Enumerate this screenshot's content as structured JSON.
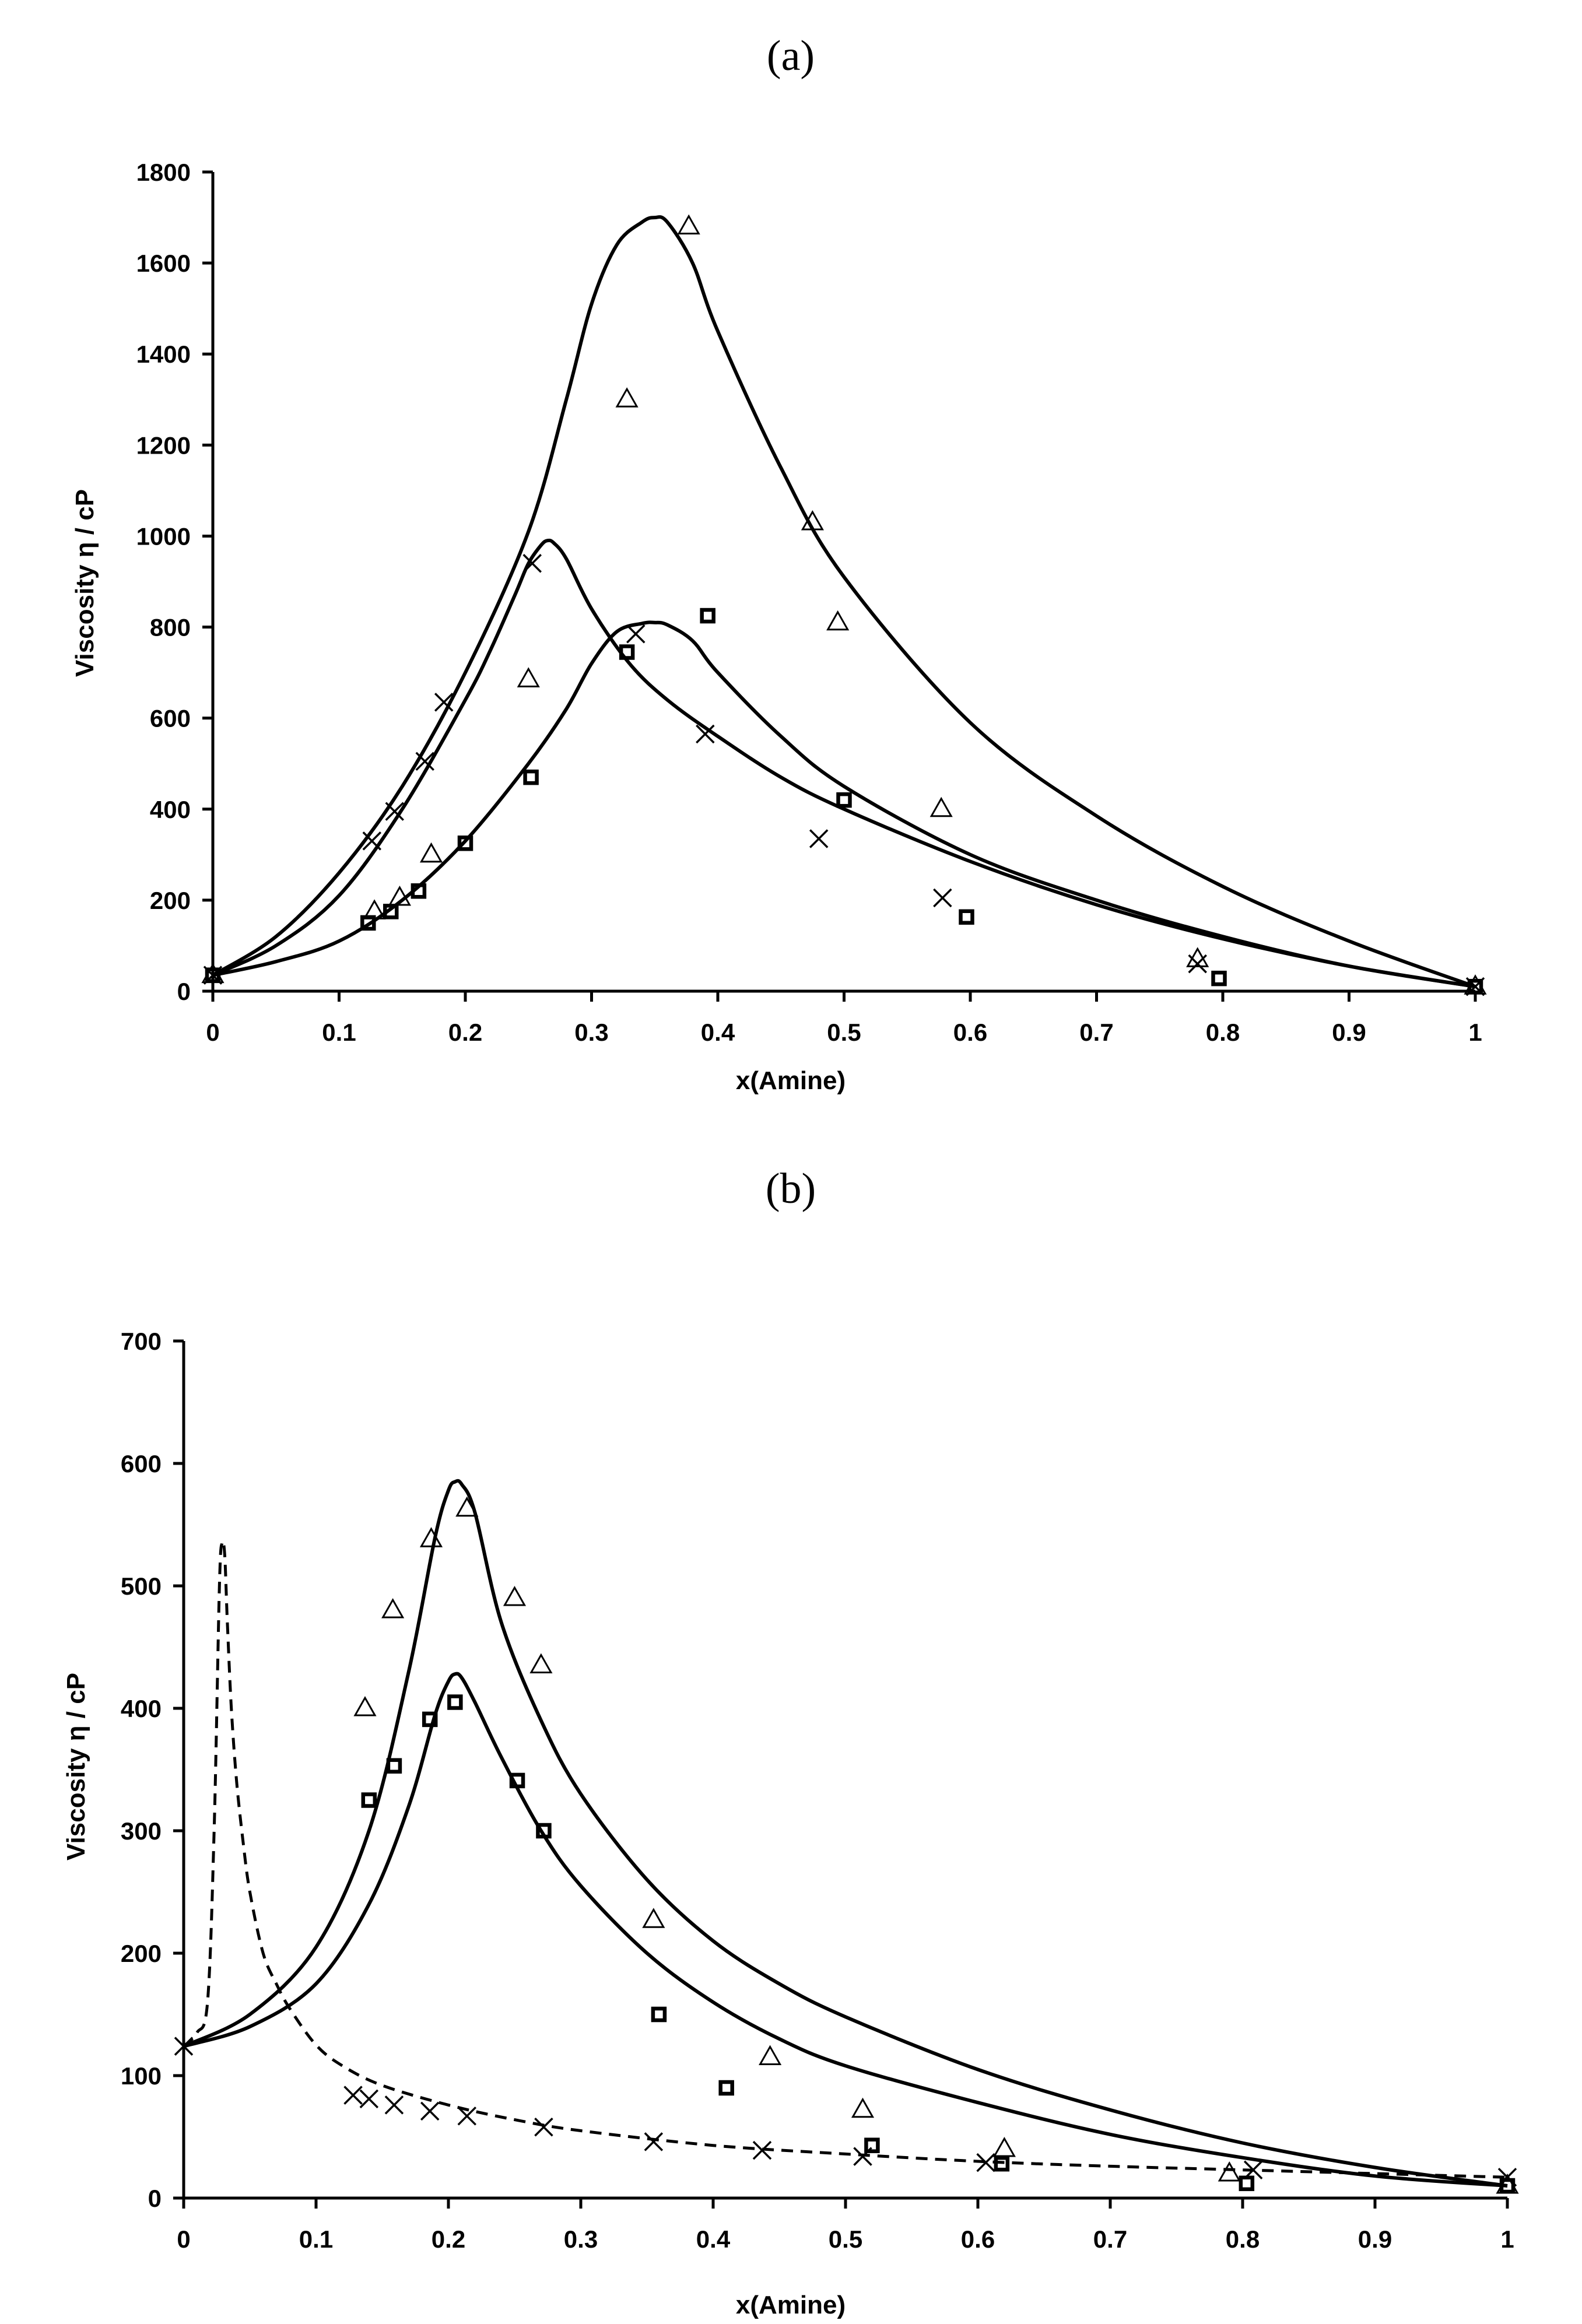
{
  "chart_data": [
    {
      "id": "a",
      "type": "scatter",
      "title": "(a)",
      "xlabel": "x(Amine)",
      "ylabel": "Viscosity η / cP",
      "xlim": [
        0,
        1
      ],
      "ylim": [
        0,
        1800
      ],
      "xticks": [
        0,
        0.1,
        0.2,
        0.3,
        0.4,
        0.5,
        0.6,
        0.7,
        0.8,
        0.9,
        1
      ],
      "xtick_labels": [
        "0",
        "0.1",
        "0.2",
        "0.3",
        "0.4",
        "0.5",
        "0.6",
        "0.7",
        "0.8",
        "0.9",
        "1"
      ],
      "yticks": [
        0,
        200,
        400,
        600,
        800,
        1000,
        1200,
        1400,
        1600,
        1800
      ],
      "ytick_labels": [
        "0",
        "200",
        "400",
        "600",
        "800",
        "1000",
        "1200",
        "1400",
        "1600",
        "1800"
      ],
      "series": [
        {
          "name": "triangle",
          "marker": "triangle",
          "points": [
            [
              0,
              35
            ],
            [
              0.128,
              175
            ],
            [
              0.148,
              205
            ],
            [
              0.173,
              300
            ],
            [
              0.25,
              685
            ],
            [
              0.328,
              1300
            ],
            [
              0.377,
              1680
            ],
            [
              0.475,
              1030
            ],
            [
              0.495,
              810
            ],
            [
              0.577,
              400
            ],
            [
              0.78,
              70
            ],
            [
              1.0,
              10
            ]
          ]
        },
        {
          "name": "square",
          "marker": "square",
          "points": [
            [
              0,
              35
            ],
            [
              0.123,
              150
            ],
            [
              0.141,
              175
            ],
            [
              0.163,
              220
            ],
            [
              0.2,
              325
            ],
            [
              0.252,
              470
            ],
            [
              0.328,
              745
            ],
            [
              0.392,
              825
            ],
            [
              0.5,
              420
            ],
            [
              0.597,
              163
            ],
            [
              0.797,
              28
            ],
            [
              1.0,
              10
            ]
          ]
        },
        {
          "name": "cross",
          "marker": "x",
          "points": [
            [
              0,
              35
            ],
            [
              0.126,
              330
            ],
            [
              0.144,
              395
            ],
            [
              0.168,
              505
            ],
            [
              0.183,
              635
            ],
            [
              0.253,
              940
            ],
            [
              0.335,
              785
            ],
            [
              0.39,
              565
            ],
            [
              0.48,
              335
            ],
            [
              0.578,
              205
            ],
            [
              0.78,
              60
            ],
            [
              1.0,
              10
            ]
          ]
        }
      ],
      "curves": [
        {
          "name": "triangle-model",
          "style": "solid",
          "x": [
            0,
            0.05,
            0.1,
            0.15,
            0.2,
            0.25,
            0.28,
            0.3,
            0.32,
            0.34,
            0.35,
            0.36,
            0.38,
            0.4,
            0.45,
            0.5,
            0.6,
            0.7,
            0.8,
            0.9,
            1.0
          ],
          "y": [
            35,
            120,
            260,
            450,
            700,
            1010,
            1300,
            1510,
            1640,
            1690,
            1700,
            1690,
            1600,
            1450,
            1150,
            910,
            590,
            385,
            230,
            110,
            10
          ]
        },
        {
          "name": "cross-model",
          "style": "solid",
          "x": [
            0,
            0.05,
            0.1,
            0.15,
            0.2,
            0.22,
            0.24,
            0.25,
            0.26,
            0.265,
            0.27,
            0.28,
            0.3,
            0.33,
            0.36,
            0.4,
            0.45,
            0.5,
            0.6,
            0.7,
            0.8,
            0.9,
            1.0
          ],
          "y": [
            35,
            100,
            210,
            400,
            640,
            750,
            875,
            940,
            980,
            990,
            985,
            950,
            840,
            720,
            640,
            560,
            470,
            400,
            285,
            190,
            115,
            55,
            10
          ]
        },
        {
          "name": "square-model",
          "style": "solid",
          "x": [
            0,
            0.05,
            0.1,
            0.15,
            0.2,
            0.25,
            0.28,
            0.3,
            0.32,
            0.34,
            0.35,
            0.36,
            0.38,
            0.4,
            0.45,
            0.5,
            0.6,
            0.7,
            0.8,
            0.9,
            1.0
          ],
          "y": [
            35,
            65,
            110,
            200,
            330,
            500,
            620,
            720,
            790,
            808,
            810,
            805,
            770,
            700,
            560,
            450,
            300,
            200,
            120,
            55,
            10
          ]
        }
      ]
    },
    {
      "id": "b",
      "type": "scatter",
      "title": "(b)",
      "xlabel": "x(Amine)",
      "ylabel": "Viscosity η / cP",
      "xlim": [
        0,
        1
      ],
      "ylim": [
        0,
        700
      ],
      "xticks": [
        0,
        0.1,
        0.2,
        0.3,
        0.4,
        0.5,
        0.6,
        0.7,
        0.8,
        0.9,
        1
      ],
      "xtick_labels": [
        "0",
        "0.1",
        "0.2",
        "0.3",
        "0.4",
        "0.5",
        "0.6",
        "0.7",
        "0.8",
        "0.9",
        "1"
      ],
      "yticks": [
        0,
        100,
        200,
        300,
        400,
        500,
        600,
        700
      ],
      "ytick_labels": [
        "0",
        "100",
        "200",
        "300",
        "400",
        "500",
        "600",
        "700"
      ],
      "series": [
        {
          "name": "triangle",
          "marker": "triangle",
          "points": [
            [
              0.137,
              400
            ],
            [
              0.187,
              538
            ],
            [
              0.158,
              480
            ],
            [
              0.214,
              563
            ],
            [
              0.25,
              490
            ],
            [
              0.27,
              435
            ],
            [
              0.355,
              227
            ],
            [
              0.443,
              115
            ],
            [
              0.513,
              72
            ],
            [
              0.62,
              40
            ],
            [
              0.79,
              20
            ],
            [
              1.0,
              10
            ]
          ]
        },
        {
          "name": "square",
          "marker": "square",
          "points": [
            [
              0.14,
              325
            ],
            [
              0.159,
              353
            ],
            [
              0.186,
              391
            ],
            [
              0.205,
              405
            ],
            [
              0.252,
              341
            ],
            [
              0.272,
              300
            ],
            [
              0.359,
              150
            ],
            [
              0.41,
              90
            ],
            [
              0.52,
              43
            ],
            [
              0.618,
              28
            ],
            [
              0.803,
              12
            ],
            [
              1.0,
              10
            ]
          ]
        },
        {
          "name": "cross",
          "marker": "x",
          "points": [
            [
              0,
              124
            ],
            [
              0.128,
              84
            ],
            [
              0.14,
              81
            ],
            [
              0.159,
              76
            ],
            [
              0.186,
              71
            ],
            [
              0.214,
              67
            ],
            [
              0.272,
              58
            ],
            [
              0.355,
              46
            ],
            [
              0.437,
              39
            ],
            [
              0.513,
              34
            ],
            [
              0.606,
              29
            ],
            [
              0.808,
              23
            ],
            [
              1.0,
              17
            ]
          ]
        }
      ],
      "curves": [
        {
          "name": "triangle-model",
          "style": "solid",
          "x": [
            0,
            0.05,
            0.1,
            0.14,
            0.17,
            0.19,
            0.2,
            0.205,
            0.21,
            0.22,
            0.24,
            0.27,
            0.3,
            0.35,
            0.4,
            0.45,
            0.5,
            0.6,
            0.7,
            0.8,
            0.9,
            1.0
          ],
          "y": [
            124,
            150,
            205,
            300,
            430,
            540,
            578,
            585,
            583,
            560,
            470,
            390,
            330,
            260,
            210,
            175,
            148,
            105,
            72,
            45,
            25,
            10
          ]
        },
        {
          "name": "square-model",
          "style": "solid",
          "x": [
            0,
            0.05,
            0.1,
            0.14,
            0.17,
            0.19,
            0.2,
            0.205,
            0.21,
            0.22,
            0.24,
            0.27,
            0.3,
            0.35,
            0.4,
            0.45,
            0.5,
            0.6,
            0.7,
            0.8,
            0.9,
            1.0
          ],
          "y": [
            124,
            140,
            175,
            240,
            320,
            395,
            422,
            428,
            425,
            405,
            360,
            300,
            255,
            200,
            160,
            130,
            108,
            78,
            52,
            33,
            18,
            10
          ]
        },
        {
          "name": "cross-model",
          "style": "dashed",
          "x": [
            0,
            0.01,
            0.018,
            0.023,
            0.027,
            0.029,
            0.031,
            0.033,
            0.036,
            0.04,
            0.045,
            0.05,
            0.06,
            0.07,
            0.08,
            0.1,
            0.12,
            0.15,
            0.2,
            0.25,
            0.3,
            0.4,
            0.5,
            0.6,
            0.7,
            0.8,
            0.9,
            1.0
          ],
          "y": [
            124,
            135,
            160,
            300,
            500,
            535,
            525,
            470,
            400,
            340,
            290,
            250,
            200,
            175,
            155,
            125,
            108,
            92,
            76,
            64,
            55,
            43,
            36,
            30,
            26,
            23,
            20,
            17
          ]
        }
      ]
    }
  ]
}
